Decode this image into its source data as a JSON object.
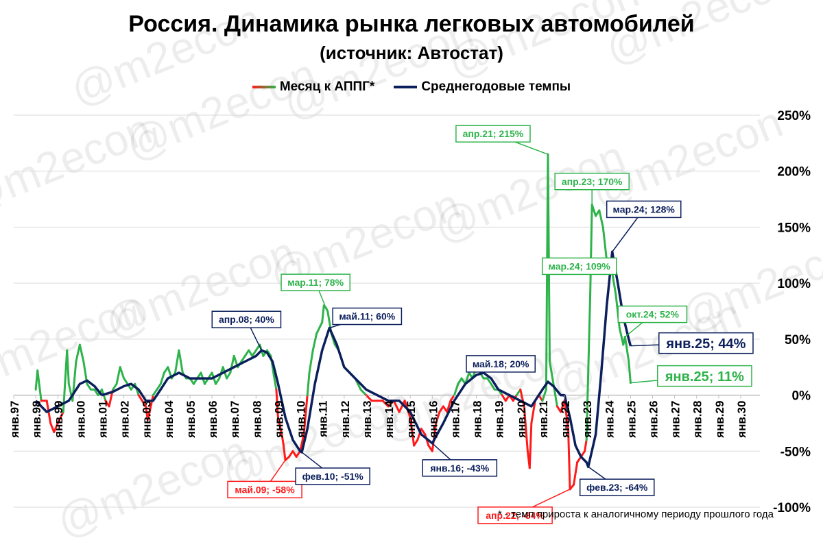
{
  "title": "Россия. Динамика рынка легковых автомобилей",
  "subtitle": "(источник: Автостат)",
  "watermark": "@m2econ",
  "footnote": "* - темп прироста к аналогичному периоду прошлого года",
  "colors": {
    "monthly_positive": "#2db34a",
    "monthly_negative": "#ff1a1a",
    "average": "#0b1f5c",
    "grid": "#d9d9d9",
    "label_bg": "#ffffff"
  },
  "chart_data": {
    "type": "line",
    "title": "Россия. Динамика рынка легковых автомобилей",
    "subtitle": "(источник: Автостат)",
    "xlabel": "",
    "ylabel": "",
    "ylim": [
      -100,
      250
    ],
    "y_tick_labels": [
      "250%",
      "200%",
      "150%",
      "100%",
      "50%",
      "0%",
      "-50%",
      "-100%"
    ],
    "y_tick_values": [
      250,
      200,
      150,
      100,
      50,
      0,
      -50,
      -100
    ],
    "x_tick_labels": [
      "янв.97",
      "янв.98",
      "янв.99",
      "янв.00",
      "янв.01",
      "янв.02",
      "янв.03",
      "янв.04",
      "янв.05",
      "янв.06",
      "янв.07",
      "янв.08",
      "янв.09",
      "янв.10",
      "янв.11",
      "янв.12",
      "янв.13",
      "янв.14",
      "янв.15",
      "янв.16",
      "янв.17",
      "янв.18",
      "янв.19",
      "янв.20",
      "янв.21",
      "янв.22",
      "янв.23",
      "янв.24",
      "янв.25",
      "янв.26",
      "янв.27",
      "янв.28",
      "янв.29",
      "янв.30"
    ],
    "x_tick_years": [
      1997,
      1998,
      1999,
      2000,
      2001,
      2002,
      2003,
      2004,
      2005,
      2006,
      2007,
      2008,
      2009,
      2010,
      2011,
      2012,
      2013,
      2014,
      2015,
      2016,
      2017,
      2018,
      2019,
      2020,
      2021,
      2022,
      2023,
      2024,
      2025,
      2026,
      2027,
      2028,
      2029,
      2030
    ],
    "grid": "horizontal",
    "legend_position": "top-center",
    "series": [
      {
        "name": "Месяц к АППГ*",
        "points": [
          [
            1998.0,
            5
          ],
          [
            1998.08,
            22
          ],
          [
            1998.25,
            -5
          ],
          [
            1998.5,
            -5
          ],
          [
            1998.67,
            -25
          ],
          [
            1998.83,
            -33
          ],
          [
            1999.0,
            -25
          ],
          [
            1999.25,
            -15
          ],
          [
            1999.42,
            40
          ],
          [
            1999.5,
            10
          ],
          [
            1999.67,
            -5
          ],
          [
            1999.83,
            30
          ],
          [
            2000.0,
            45
          ],
          [
            2000.17,
            30
          ],
          [
            2000.33,
            10
          ],
          [
            2000.5,
            5
          ],
          [
            2000.67,
            5
          ],
          [
            2000.83,
            0
          ],
          [
            2001.0,
            5
          ],
          [
            2001.17,
            -5
          ],
          [
            2001.33,
            -10
          ],
          [
            2001.5,
            5
          ],
          [
            2001.67,
            10
          ],
          [
            2001.83,
            25
          ],
          [
            2002.0,
            15
          ],
          [
            2002.17,
            10
          ],
          [
            2002.33,
            5
          ],
          [
            2002.5,
            10
          ],
          [
            2002.67,
            0
          ],
          [
            2002.83,
            -5
          ],
          [
            2003.0,
            -10
          ],
          [
            2003.08,
            -22
          ],
          [
            2003.17,
            -15
          ],
          [
            2003.33,
            0
          ],
          [
            2003.5,
            5
          ],
          [
            2003.67,
            10
          ],
          [
            2003.83,
            20
          ],
          [
            2004.0,
            25
          ],
          [
            2004.17,
            15
          ],
          [
            2004.33,
            20
          ],
          [
            2004.5,
            40
          ],
          [
            2004.67,
            20
          ],
          [
            2004.83,
            15
          ],
          [
            2005.0,
            15
          ],
          [
            2005.17,
            10
          ],
          [
            2005.33,
            15
          ],
          [
            2005.5,
            20
          ],
          [
            2005.67,
            10
          ],
          [
            2005.83,
            15
          ],
          [
            2006.0,
            20
          ],
          [
            2006.17,
            10
          ],
          [
            2006.33,
            15
          ],
          [
            2006.5,
            25
          ],
          [
            2006.67,
            15
          ],
          [
            2006.83,
            20
          ],
          [
            2007.0,
            35
          ],
          [
            2007.17,
            25
          ],
          [
            2007.33,
            30
          ],
          [
            2007.5,
            35
          ],
          [
            2007.67,
            40
          ],
          [
            2007.83,
            35
          ],
          [
            2008.0,
            40
          ],
          [
            2008.17,
            45
          ],
          [
            2008.33,
            35
          ],
          [
            2008.5,
            40
          ],
          [
            2008.67,
            35
          ],
          [
            2008.75,
            25
          ],
          [
            2008.83,
            15
          ],
          [
            2008.92,
            5
          ],
          [
            2009.0,
            -20
          ],
          [
            2009.17,
            -35
          ],
          [
            2009.25,
            -45
          ],
          [
            2009.33,
            -58
          ],
          [
            2009.5,
            -55
          ],
          [
            2009.67,
            -50
          ],
          [
            2009.83,
            -55
          ],
          [
            2010.0,
            -50
          ],
          [
            2010.17,
            -35
          ],
          [
            2010.33,
            0
          ],
          [
            2010.42,
            20
          ],
          [
            2010.58,
            40
          ],
          [
            2010.75,
            55
          ],
          [
            2011.0,
            65
          ],
          [
            2011.08,
            80
          ],
          [
            2011.17,
            78
          ],
          [
            2011.25,
            75
          ],
          [
            2011.42,
            55
          ],
          [
            2011.58,
            45
          ],
          [
            2011.75,
            40
          ],
          [
            2011.92,
            30
          ],
          [
            2012.0,
            25
          ],
          [
            2012.25,
            20
          ],
          [
            2012.5,
            15
          ],
          [
            2012.75,
            5
          ],
          [
            2013.0,
            0
          ],
          [
            2013.25,
            -5
          ],
          [
            2013.5,
            -5
          ],
          [
            2013.75,
            -5
          ],
          [
            2014.0,
            -10
          ],
          [
            2014.25,
            -5
          ],
          [
            2014.5,
            -15
          ],
          [
            2014.75,
            -5
          ],
          [
            2015.0,
            -20
          ],
          [
            2015.17,
            -45
          ],
          [
            2015.33,
            -40
          ],
          [
            2015.5,
            -30
          ],
          [
            2015.67,
            -35
          ],
          [
            2015.83,
            -45
          ],
          [
            2016.0,
            -50
          ],
          [
            2016.17,
            -25
          ],
          [
            2016.33,
            -15
          ],
          [
            2016.5,
            -10
          ],
          [
            2016.67,
            -15
          ],
          [
            2016.83,
            -5
          ],
          [
            2017.0,
            0
          ],
          [
            2017.17,
            10
          ],
          [
            2017.33,
            15
          ],
          [
            2017.5,
            10
          ],
          [
            2017.67,
            20
          ],
          [
            2017.83,
            15
          ],
          [
            2018.0,
            25
          ],
          [
            2018.17,
            20
          ],
          [
            2018.33,
            15
          ],
          [
            2018.5,
            15
          ],
          [
            2018.67,
            10
          ],
          [
            2018.83,
            5
          ],
          [
            2019.0,
            5
          ],
          [
            2019.17,
            0
          ],
          [
            2019.33,
            -5
          ],
          [
            2019.5,
            0
          ],
          [
            2019.67,
            -5
          ],
          [
            2019.83,
            0
          ],
          [
            2020.0,
            5
          ],
          [
            2020.17,
            -10
          ],
          [
            2020.33,
            -50
          ],
          [
            2020.42,
            -65
          ],
          [
            2020.5,
            -25
          ],
          [
            2020.67,
            -5
          ],
          [
            2020.83,
            0
          ],
          [
            2021.0,
            -5
          ],
          [
            2021.17,
            5
          ],
          [
            2021.25,
            215
          ],
          [
            2021.33,
            30
          ],
          [
            2021.5,
            10
          ],
          [
            2021.67,
            -10
          ],
          [
            2021.83,
            -15
          ],
          [
            2022.0,
            -5
          ],
          [
            2022.17,
            -30
          ],
          [
            2022.25,
            -84
          ],
          [
            2022.42,
            -80
          ],
          [
            2022.58,
            -60
          ],
          [
            2022.75,
            -55
          ],
          [
            2022.92,
            -50
          ],
          [
            2023.0,
            -40
          ],
          [
            2023.17,
            90
          ],
          [
            2023.25,
            170
          ],
          [
            2023.42,
            160
          ],
          [
            2023.58,
            165
          ],
          [
            2023.75,
            150
          ],
          [
            2023.92,
            120
          ],
          [
            2024.0,
            110
          ],
          [
            2024.17,
            109
          ],
          [
            2024.33,
            90
          ],
          [
            2024.5,
            60
          ],
          [
            2024.67,
            45
          ],
          [
            2024.75,
            52
          ],
          [
            2024.92,
            30
          ],
          [
            2025.0,
            11
          ]
        ]
      },
      {
        "name": "Среднегодовые темпы",
        "points": [
          [
            1998.0,
            -5
          ],
          [
            1998.5,
            -15
          ],
          [
            1999.0,
            -10
          ],
          [
            1999.5,
            -5
          ],
          [
            2000.0,
            10
          ],
          [
            2000.33,
            13
          ],
          [
            2000.67,
            8
          ],
          [
            2001.0,
            0
          ],
          [
            2001.5,
            3
          ],
          [
            2002.0,
            8
          ],
          [
            2002.33,
            10
          ],
          [
            2002.67,
            5
          ],
          [
            2003.0,
            -5
          ],
          [
            2003.33,
            -5
          ],
          [
            2003.67,
            5
          ],
          [
            2004.0,
            15
          ],
          [
            2004.5,
            20
          ],
          [
            2005.0,
            15
          ],
          [
            2005.5,
            15
          ],
          [
            2006.0,
            15
          ],
          [
            2006.5,
            20
          ],
          [
            2007.0,
            25
          ],
          [
            2007.5,
            30
          ],
          [
            2008.0,
            35
          ],
          [
            2008.25,
            40
          ],
          [
            2008.5,
            38
          ],
          [
            2008.75,
            30
          ],
          [
            2009.0,
            10
          ],
          [
            2009.33,
            -20
          ],
          [
            2009.67,
            -40
          ],
          [
            2010.0,
            -50
          ],
          [
            2010.08,
            -51
          ],
          [
            2010.33,
            -30
          ],
          [
            2010.67,
            10
          ],
          [
            2011.0,
            40
          ],
          [
            2011.33,
            60
          ],
          [
            2011.67,
            45
          ],
          [
            2012.0,
            25
          ],
          [
            2012.5,
            15
          ],
          [
            2013.0,
            5
          ],
          [
            2013.5,
            0
          ],
          [
            2014.0,
            -5
          ],
          [
            2014.5,
            -5
          ],
          [
            2015.0,
            -15
          ],
          [
            2015.5,
            -35
          ],
          [
            2016.0,
            -43
          ],
          [
            2016.5,
            -25
          ],
          [
            2017.0,
            -5
          ],
          [
            2017.5,
            10
          ],
          [
            2018.0,
            18
          ],
          [
            2018.33,
            20
          ],
          [
            2018.67,
            15
          ],
          [
            2019.0,
            5
          ],
          [
            2019.5,
            0
          ],
          [
            2020.0,
            -5
          ],
          [
            2020.5,
            -10
          ],
          [
            2021.0,
            5
          ],
          [
            2021.25,
            12
          ],
          [
            2021.5,
            8
          ],
          [
            2021.83,
            0
          ],
          [
            2022.0,
            0
          ],
          [
            2022.25,
            -20
          ],
          [
            2022.5,
            -45
          ],
          [
            2022.75,
            -55
          ],
          [
            2023.0,
            -60
          ],
          [
            2023.08,
            -64
          ],
          [
            2023.42,
            -35
          ],
          [
            2023.67,
            20
          ],
          [
            2023.92,
            80
          ],
          [
            2024.17,
            128
          ],
          [
            2024.42,
            100
          ],
          [
            2024.67,
            70
          ],
          [
            2024.92,
            50
          ],
          [
            2025.0,
            44
          ]
        ]
      }
    ],
    "annotations": [
      {
        "text": "апр.21; 215%",
        "series": "Месяц к АППГ*",
        "x": 2021.25,
        "y": 215
      },
      {
        "text": "апр.23; 170%",
        "series": "Месяц к АППГ*",
        "x": 2023.25,
        "y": 170
      },
      {
        "text": "мар.24; 128%",
        "series": "Среднегодовые темпы",
        "x": 2024.17,
        "y": 128
      },
      {
        "text": "мар.24; 109%",
        "series": "Месяц к АППГ*",
        "x": 2024.17,
        "y": 109
      },
      {
        "text": "мар.11; 78%",
        "series": "Месяц к АППГ*",
        "x": 2011.17,
        "y": 78
      },
      {
        "text": "апр.08; 40%",
        "series": "Среднегодовые темпы",
        "x": 2008.25,
        "y": 40
      },
      {
        "text": "май.11; 60%",
        "series": "Среднегодовые темпы",
        "x": 2011.33,
        "y": 60
      },
      {
        "text": "окт.24; 52%",
        "series": "Месяц к АППГ*",
        "x": 2024.75,
        "y": 52
      },
      {
        "text": "янв.25; 44%",
        "series": "Среднегодовые темпы",
        "x": 2025.0,
        "y": 44
      },
      {
        "text": "май.18; 20%",
        "series": "Среднегодовые темпы",
        "x": 2018.33,
        "y": 20
      },
      {
        "text": "янв.25; 11%",
        "series": "Месяц к АППГ*",
        "x": 2025.0,
        "y": 11
      },
      {
        "text": "янв.16; -43%",
        "series": "Среднегодовые темпы",
        "x": 2016.0,
        "y": -43
      },
      {
        "text": "май.09; -58%",
        "series": "Месяц к АППГ*",
        "x": 2009.33,
        "y": -58
      },
      {
        "text": "фев.10; -51%",
        "series": "Среднегодовые темпы",
        "x": 2010.08,
        "y": -51
      },
      {
        "text": "апр.22; -84%",
        "series": "Месяц к АППГ*",
        "x": 2022.25,
        "y": -84
      },
      {
        "text": "фев.23; -64%",
        "series": "Среднегодовые темпы",
        "x": 2023.08,
        "y": -64
      }
    ]
  }
}
